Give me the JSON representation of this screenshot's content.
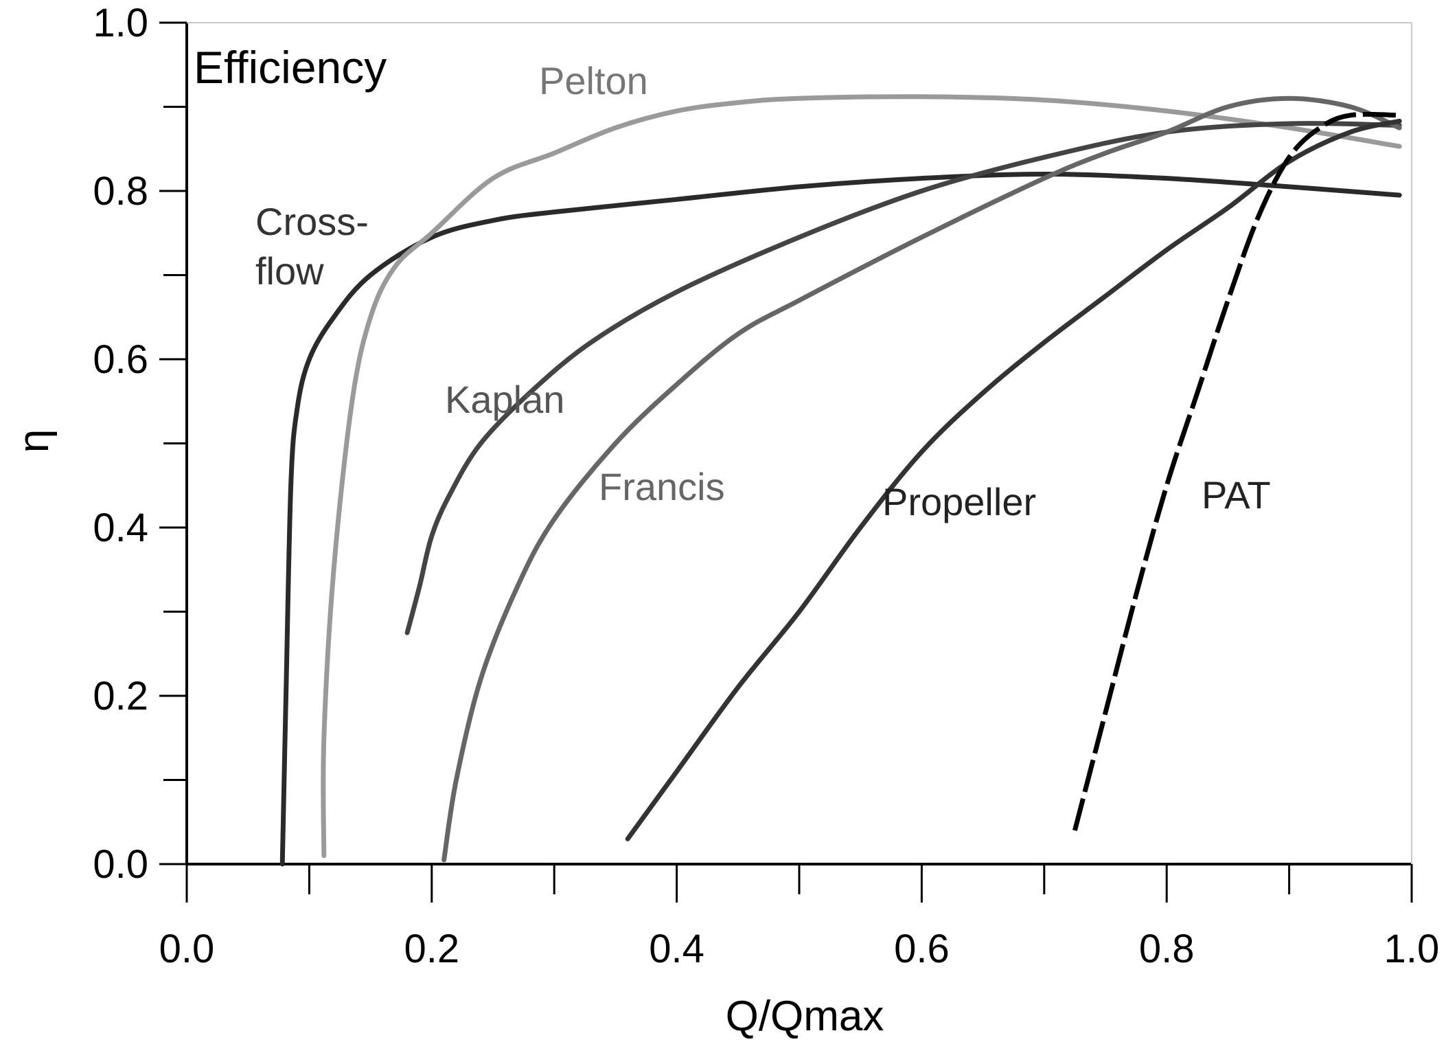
{
  "chart_data": {
    "type": "line",
    "title": "Efficiency",
    "xlabel": "Q/Qmax",
    "ylabel": "η",
    "xlim": [
      0,
      1
    ],
    "ylim": [
      0,
      1
    ],
    "x_ticks": [
      "0.0",
      "0.2",
      "0.4",
      "0.6",
      "0.8",
      "1.0"
    ],
    "y_ticks": [
      "0.0",
      "0.2",
      "0.4",
      "0.6",
      "0.8",
      "1.0"
    ],
    "grid": false,
    "legend": "none",
    "series": [
      {
        "name": "Cross-\nflow",
        "label_lines": [
          "Cross-",
          "flow"
        ],
        "color": "#2a2a2a",
        "dashed": false,
        "points": [
          [
            0.078,
            0.0
          ],
          [
            0.081,
            0.2
          ],
          [
            0.085,
            0.45
          ],
          [
            0.09,
            0.54
          ],
          [
            0.1,
            0.6
          ],
          [
            0.12,
            0.65
          ],
          [
            0.15,
            0.7
          ],
          [
            0.2,
            0.745
          ],
          [
            0.25,
            0.765
          ],
          [
            0.3,
            0.775
          ],
          [
            0.4,
            0.79
          ],
          [
            0.5,
            0.805
          ],
          [
            0.6,
            0.815
          ],
          [
            0.7,
            0.82
          ],
          [
            0.8,
            0.815
          ],
          [
            0.9,
            0.805
          ],
          [
            0.99,
            0.795
          ]
        ]
      },
      {
        "name": "Pelton",
        "label_lines": [
          "Pelton"
        ],
        "color": "#9a9a9a",
        "dashed": false,
        "points": [
          [
            0.112,
            0.01
          ],
          [
            0.112,
            0.15
          ],
          [
            0.12,
            0.35
          ],
          [
            0.135,
            0.55
          ],
          [
            0.15,
            0.65
          ],
          [
            0.17,
            0.71
          ],
          [
            0.2,
            0.75
          ],
          [
            0.25,
            0.815
          ],
          [
            0.3,
            0.845
          ],
          [
            0.35,
            0.875
          ],
          [
            0.4,
            0.895
          ],
          [
            0.45,
            0.905
          ],
          [
            0.5,
            0.91
          ],
          [
            0.6,
            0.912
          ],
          [
            0.7,
            0.908
          ],
          [
            0.8,
            0.895
          ],
          [
            0.9,
            0.875
          ],
          [
            0.99,
            0.853
          ]
        ]
      },
      {
        "name": "Kaplan",
        "label_lines": [
          "Kaplan"
        ],
        "color": "#444444",
        "dashed": false,
        "points": [
          [
            0.18,
            0.275
          ],
          [
            0.19,
            0.33
          ],
          [
            0.2,
            0.39
          ],
          [
            0.215,
            0.44
          ],
          [
            0.24,
            0.5
          ],
          [
            0.28,
            0.56
          ],
          [
            0.33,
            0.62
          ],
          [
            0.4,
            0.68
          ],
          [
            0.5,
            0.745
          ],
          [
            0.6,
            0.8
          ],
          [
            0.7,
            0.84
          ],
          [
            0.8,
            0.87
          ],
          [
            0.9,
            0.88
          ],
          [
            0.99,
            0.878
          ]
        ]
      },
      {
        "name": "Francis",
        "label_lines": [
          "Francis"
        ],
        "color": "#666666",
        "dashed": false,
        "points": [
          [
            0.21,
            0.005
          ],
          [
            0.22,
            0.1
          ],
          [
            0.24,
            0.22
          ],
          [
            0.27,
            0.33
          ],
          [
            0.3,
            0.41
          ],
          [
            0.35,
            0.5
          ],
          [
            0.4,
            0.57
          ],
          [
            0.45,
            0.63
          ],
          [
            0.5,
            0.67
          ],
          [
            0.6,
            0.745
          ],
          [
            0.7,
            0.815
          ],
          [
            0.75,
            0.845
          ],
          [
            0.8,
            0.87
          ],
          [
            0.85,
            0.9
          ],
          [
            0.9,
            0.91
          ],
          [
            0.95,
            0.9
          ],
          [
            0.99,
            0.875
          ]
        ]
      },
      {
        "name": "Propeller",
        "label_lines": [
          "Propeller"
        ],
        "color": "#333333",
        "dashed": false,
        "points": [
          [
            0.36,
            0.03
          ],
          [
            0.4,
            0.11
          ],
          [
            0.45,
            0.21
          ],
          [
            0.5,
            0.3
          ],
          [
            0.55,
            0.4
          ],
          [
            0.6,
            0.49
          ],
          [
            0.65,
            0.56
          ],
          [
            0.7,
            0.62
          ],
          [
            0.75,
            0.675
          ],
          [
            0.8,
            0.73
          ],
          [
            0.85,
            0.78
          ],
          [
            0.9,
            0.835
          ],
          [
            0.95,
            0.87
          ],
          [
            0.99,
            0.883
          ]
        ]
      },
      {
        "name": "PAT",
        "label_lines": [
          "PAT"
        ],
        "color": "#000000",
        "dashed": true,
        "points": [
          [
            0.725,
            0.04
          ],
          [
            0.75,
            0.18
          ],
          [
            0.775,
            0.32
          ],
          [
            0.8,
            0.45
          ],
          [
            0.825,
            0.56
          ],
          [
            0.85,
            0.67
          ],
          [
            0.875,
            0.77
          ],
          [
            0.9,
            0.84
          ],
          [
            0.925,
            0.875
          ],
          [
            0.95,
            0.89
          ],
          [
            0.99,
            0.89
          ]
        ]
      }
    ]
  }
}
